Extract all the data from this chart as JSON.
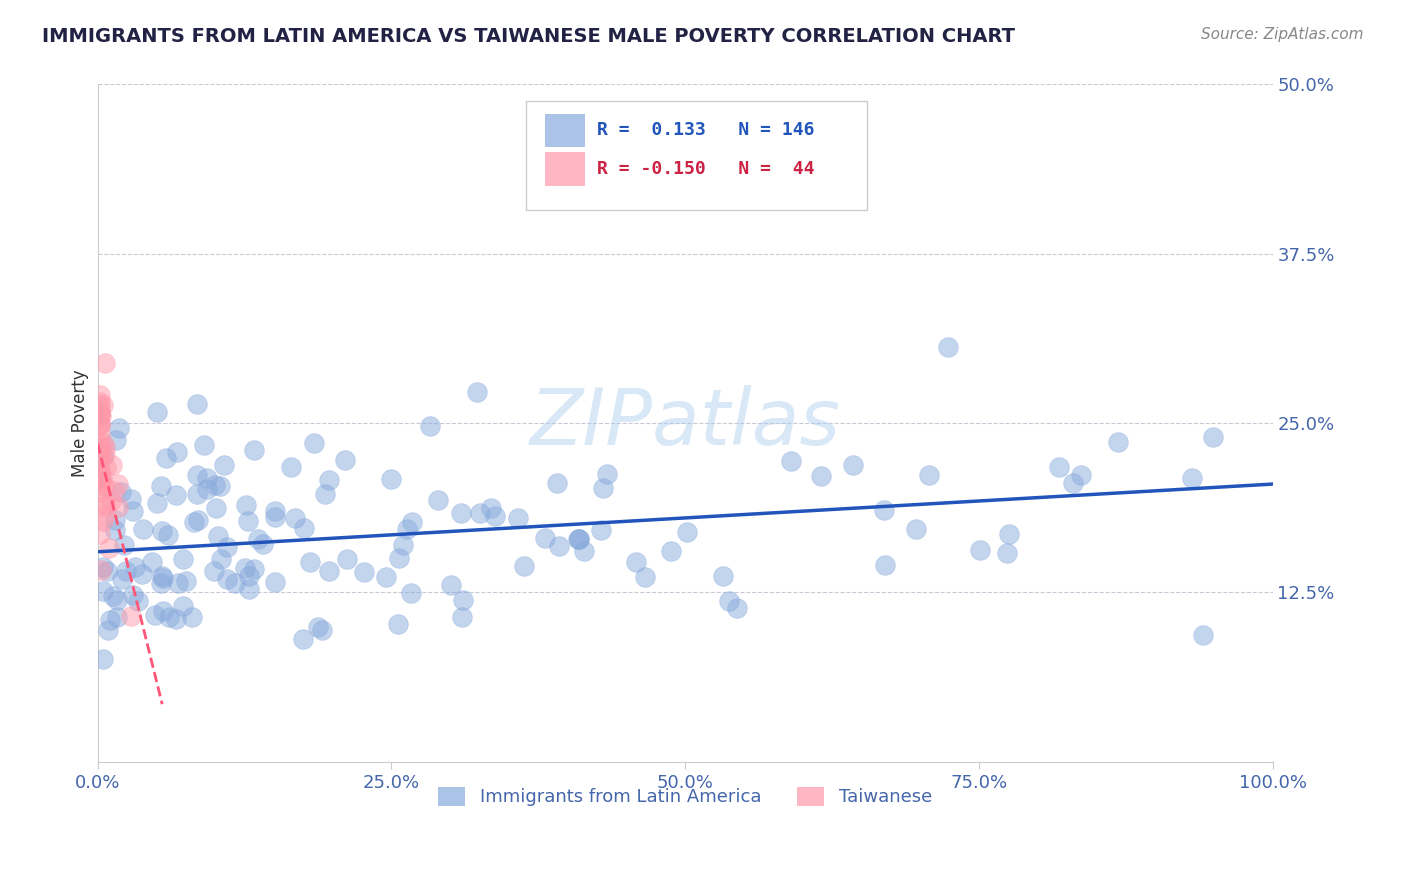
{
  "title": "IMMIGRANTS FROM LATIN AMERICA VS TAIWANESE MALE POVERTY CORRELATION CHART",
  "source_text": "Source: ZipAtlas.com",
  "ylabel": "Male Poverty",
  "legend_label_1": "Immigrants from Latin America",
  "legend_label_2": "Taiwanese",
  "r1": 0.133,
  "n1": 146,
  "r2": -0.15,
  "n2": 44,
  "blue_color": "#88AADD",
  "pink_color": "#FF99AA",
  "blue_line_color": "#2255BB",
  "pink_line_color": "#FF5577",
  "title_color": "#222244",
  "axis_label_color": "#4466AA",
  "ytick_color": "#4466AA",
  "xtick_color": "#4466AA",
  "watermark": "ZIPatlas",
  "watermark_color": "#AACCEE",
  "background_color": "#FFFFFF",
  "grid_color": "#BBBBCC",
  "xlim": [
    0.0,
    1.0
  ],
  "ylim": [
    0.0,
    0.5
  ],
  "yticks": [
    0.0,
    0.125,
    0.25,
    0.375,
    0.5
  ],
  "ytick_labels": [
    "",
    "12.5%",
    "25.0%",
    "37.5%",
    "50.0%"
  ],
  "xticks": [
    0.0,
    0.25,
    0.5,
    0.75,
    1.0
  ],
  "xtick_labels": [
    "0.0%",
    "25.0%",
    "50.0%",
    "75.0%",
    "100.0%"
  ],
  "blue_slope": 0.05,
  "blue_intercept": 0.155,
  "pink_slope": -3.5,
  "pink_intercept": 0.235,
  "pink_line_xmax": 0.055
}
